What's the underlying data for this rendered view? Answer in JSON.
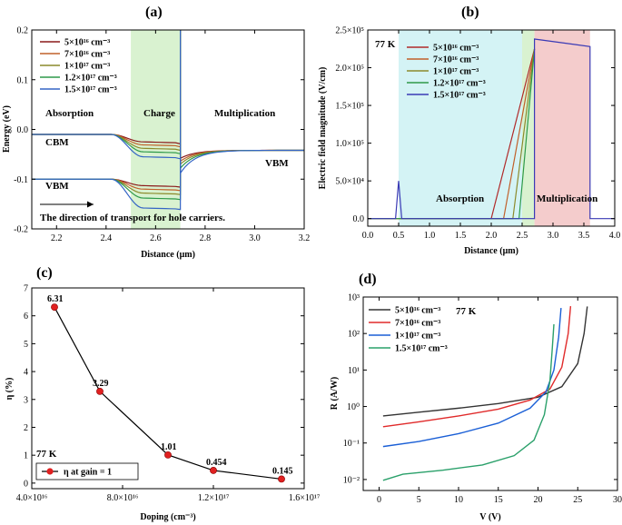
{
  "panel_labels": [
    "(a)",
    "(b)",
    "(c)",
    "(d)"
  ],
  "chart_data": [
    {
      "panel": "(a)",
      "type": "line",
      "xlabel": "Distance (μm)",
      "ylabel": "Energy (eV)",
      "xlim": [
        2.1,
        3.2
      ],
      "ylim": [
        -0.2,
        0.2
      ],
      "x_ticks": [
        "2.2",
        "2.4",
        "2.6",
        "2.8",
        "3.0",
        "3.2"
      ],
      "y_ticks": [
        "-0.2",
        "-0.1",
        "0.0",
        "0.1",
        "0.2"
      ],
      "regions": [
        {
          "label": "Absorption",
          "color": "#ffffff"
        },
        {
          "label": "Charge",
          "color": "#d9f2d0",
          "x_range": [
            2.5,
            2.7
          ]
        },
        {
          "label": "Multiplication",
          "color": "#ffffff"
        }
      ],
      "annotations": [
        "CBM",
        "VBM",
        "VBM",
        "The direction of transport for hole carriers."
      ],
      "legend": [
        {
          "label": "5×10¹⁶ cm⁻³",
          "color": "#8b1a1a"
        },
        {
          "label": "7×10¹⁶ cm⁻³",
          "color": "#c0602a"
        },
        {
          "label": "1×10¹⁷ cm⁻³",
          "color": "#8c8a2c"
        },
        {
          "label": "1.2×10¹⁷ cm⁻³",
          "color": "#2e9a4a"
        },
        {
          "label": "1.5×10¹⁷ cm⁻³",
          "color": "#3565c5"
        }
      ],
      "series": [
        {
          "name": "5×10¹⁶ cm⁻³",
          "cbm_dip": -0.025,
          "vbm_dip": -0.113,
          "multi_start_cbm": -0.058
        },
        {
          "name": "7×10¹⁶ cm⁻³",
          "cbm_dip": -0.031,
          "vbm_dip": -0.12,
          "multi_start_cbm": -0.064
        },
        {
          "name": "1×10¹⁷ cm⁻³",
          "cbm_dip": -0.038,
          "vbm_dip": -0.128,
          "multi_start_cbm": -0.07
        },
        {
          "name": "1.2×10¹⁷ cm⁻³",
          "cbm_dip": -0.045,
          "vbm_dip": -0.138,
          "multi_start_cbm": -0.078
        },
        {
          "name": "1.5×10¹⁷ cm⁻³",
          "cbm_dip": -0.055,
          "vbm_dip": -0.158,
          "multi_start_cbm": -0.088
        }
      ],
      "cbm_level": -0.01,
      "vbm_level": -0.1,
      "cbm_right_level": -0.042
    },
    {
      "panel": "(b)",
      "type": "line",
      "xlabel": "Distance (μm)",
      "ylabel": "Electric field magnitude (V/cm)",
      "xlim": [
        0.0,
        4.0
      ],
      "ylim": [
        -10000,
        250000
      ],
      "x_ticks": [
        "0.0",
        "0.5",
        "1.0",
        "1.5",
        "2.0",
        "2.5",
        "3.0",
        "3.5",
        "4.0"
      ],
      "y_ticks": [
        "0.0",
        "5.0×10⁴",
        "1.0×10⁵",
        "1.5×10⁵",
        "2.0×10⁵",
        "2.5×10⁵"
      ],
      "temperature_label": "77 K",
      "regions": [
        {
          "label": "Absorption",
          "color": "#d4f3f5",
          "x_range": [
            0.5,
            2.5
          ]
        },
        {
          "label": "",
          "color": "#d9f2d0",
          "x_range": [
            2.5,
            2.7
          ]
        },
        {
          "label": "Multiplication",
          "color": "#f4cccc",
          "x_range": [
            2.7,
            3.6
          ]
        }
      ],
      "legend": [
        {
          "label": "5×10¹⁶ cm⁻³",
          "color": "#b02a2a"
        },
        {
          "label": "7×10¹⁶ cm⁻³",
          "color": "#c0602a"
        },
        {
          "label": "1×10¹⁷ cm⁻³",
          "color": "#8c8a2c"
        },
        {
          "label": "1.2×10¹⁷ cm⁻³",
          "color": "#2e9a4a"
        },
        {
          "label": "1.5×10¹⁷ cm⁻³",
          "color": "#3a3ab5"
        }
      ],
      "series": [
        {
          "name": "5×10¹⁶ cm⁻³",
          "x": [
            0.0,
            2.0,
            2.7
          ],
          "y": [
            0,
            0,
            225000
          ]
        },
        {
          "name": "7×10¹⁶ cm⁻³",
          "x": [
            0.0,
            2.2,
            2.7
          ],
          "y": [
            0,
            0,
            225000
          ]
        },
        {
          "name": "1×10¹⁷ cm⁻³",
          "x": [
            0.0,
            2.35,
            2.7
          ],
          "y": [
            0,
            0,
            225000
          ]
        },
        {
          "name": "1.2×10¹⁷ cm⁻³",
          "x": [
            0.0,
            2.45,
            2.7
          ],
          "y": [
            0,
            0,
            225000
          ]
        },
        {
          "name": "1.5×10¹⁷ cm⁻³",
          "x": [
            0.0,
            0.45,
            0.5,
            0.55,
            2.5,
            2.7,
            2.7,
            3.6,
            3.6,
            4.0
          ],
          "y": [
            0,
            0,
            50000,
            0,
            0,
            0,
            238000,
            228000,
            0,
            0
          ]
        }
      ]
    },
    {
      "panel": "(c)",
      "type": "line",
      "xlabel": "Doping (cm⁻³)",
      "ylabel": "η (%)",
      "xlim": [
        4e+16,
        1.6e+17
      ],
      "ylim": [
        -0.2,
        7.0
      ],
      "x_ticks": [
        "4.0×10¹⁶",
        "8.0×10¹⁶",
        "1.2×10¹⁷",
        "1.6×10¹⁷"
      ],
      "y_ticks": [
        "0",
        "1",
        "2",
        "3",
        "4",
        "5",
        "6",
        "7"
      ],
      "temperature_label": "77 K",
      "legend": [
        {
          "label": "η at gain = 1",
          "color": "#e02020"
        }
      ],
      "x": [
        5e+16,
        7e+16,
        1e+17,
        1.2e+17,
        1.5e+17
      ],
      "values": [
        6.31,
        3.29,
        1.01,
        0.454,
        0.145
      ],
      "data_labels": [
        "6.31",
        "3.29",
        "1.01",
        "0.454",
        "0.145"
      ]
    },
    {
      "panel": "(d)",
      "type": "line",
      "xlabel": "V (V)",
      "ylabel": "R (A/W)",
      "y_scale": "log",
      "xlim": [
        -2,
        30
      ],
      "ylim": [
        0.005,
        1000
      ],
      "x_ticks": [
        "0",
        "5",
        "10",
        "15",
        "20",
        "25",
        "30"
      ],
      "y_ticks": [
        "10⁻²",
        "10⁻¹",
        "10⁰",
        "10¹",
        "10²",
        "10³"
      ],
      "temperature_label": "77 K",
      "legend": [
        {
          "label": "5×10¹⁶ cm⁻³",
          "color": "#333333"
        },
        {
          "label": "7×10¹⁶ cm⁻³",
          "color": "#e02a2a"
        },
        {
          "label": "1×10¹⁷ cm⁻³",
          "color": "#1a5fd6"
        },
        {
          "label": "1.5×10¹⁷ cm⁻³",
          "color": "#2aa06a"
        }
      ],
      "series": [
        {
          "name": "5×10¹⁶ cm⁻³",
          "x": [
            0.5,
            5,
            10,
            15,
            20,
            23,
            25,
            25.8,
            26.2
          ],
          "y": [
            0.55,
            0.7,
            0.9,
            1.2,
            1.8,
            3.5,
            15,
            100,
            550
          ]
        },
        {
          "name": "7×10¹⁶ cm⁻³",
          "x": [
            0.5,
            5,
            10,
            15,
            19,
            21.5,
            23,
            23.8,
            24.1
          ],
          "y": [
            0.28,
            0.38,
            0.55,
            0.85,
            1.5,
            3.0,
            12,
            100,
            560
          ]
        },
        {
          "name": "1×10¹⁷ cm⁻³",
          "x": [
            0.5,
            5,
            10,
            15,
            19,
            21,
            22,
            22.6,
            22.9
          ],
          "y": [
            0.08,
            0.11,
            0.18,
            0.35,
            0.9,
            2.5,
            10,
            80,
            500
          ]
        },
        {
          "name": "1.5×10¹⁷ cm⁻³",
          "x": [
            0.5,
            3,
            8,
            13,
            17,
            19.5,
            20.8,
            21.5,
            21.8,
            22.0
          ],
          "y": [
            0.0095,
            0.014,
            0.018,
            0.025,
            0.045,
            0.12,
            0.6,
            5,
            40,
            180
          ]
        }
      ]
    }
  ]
}
